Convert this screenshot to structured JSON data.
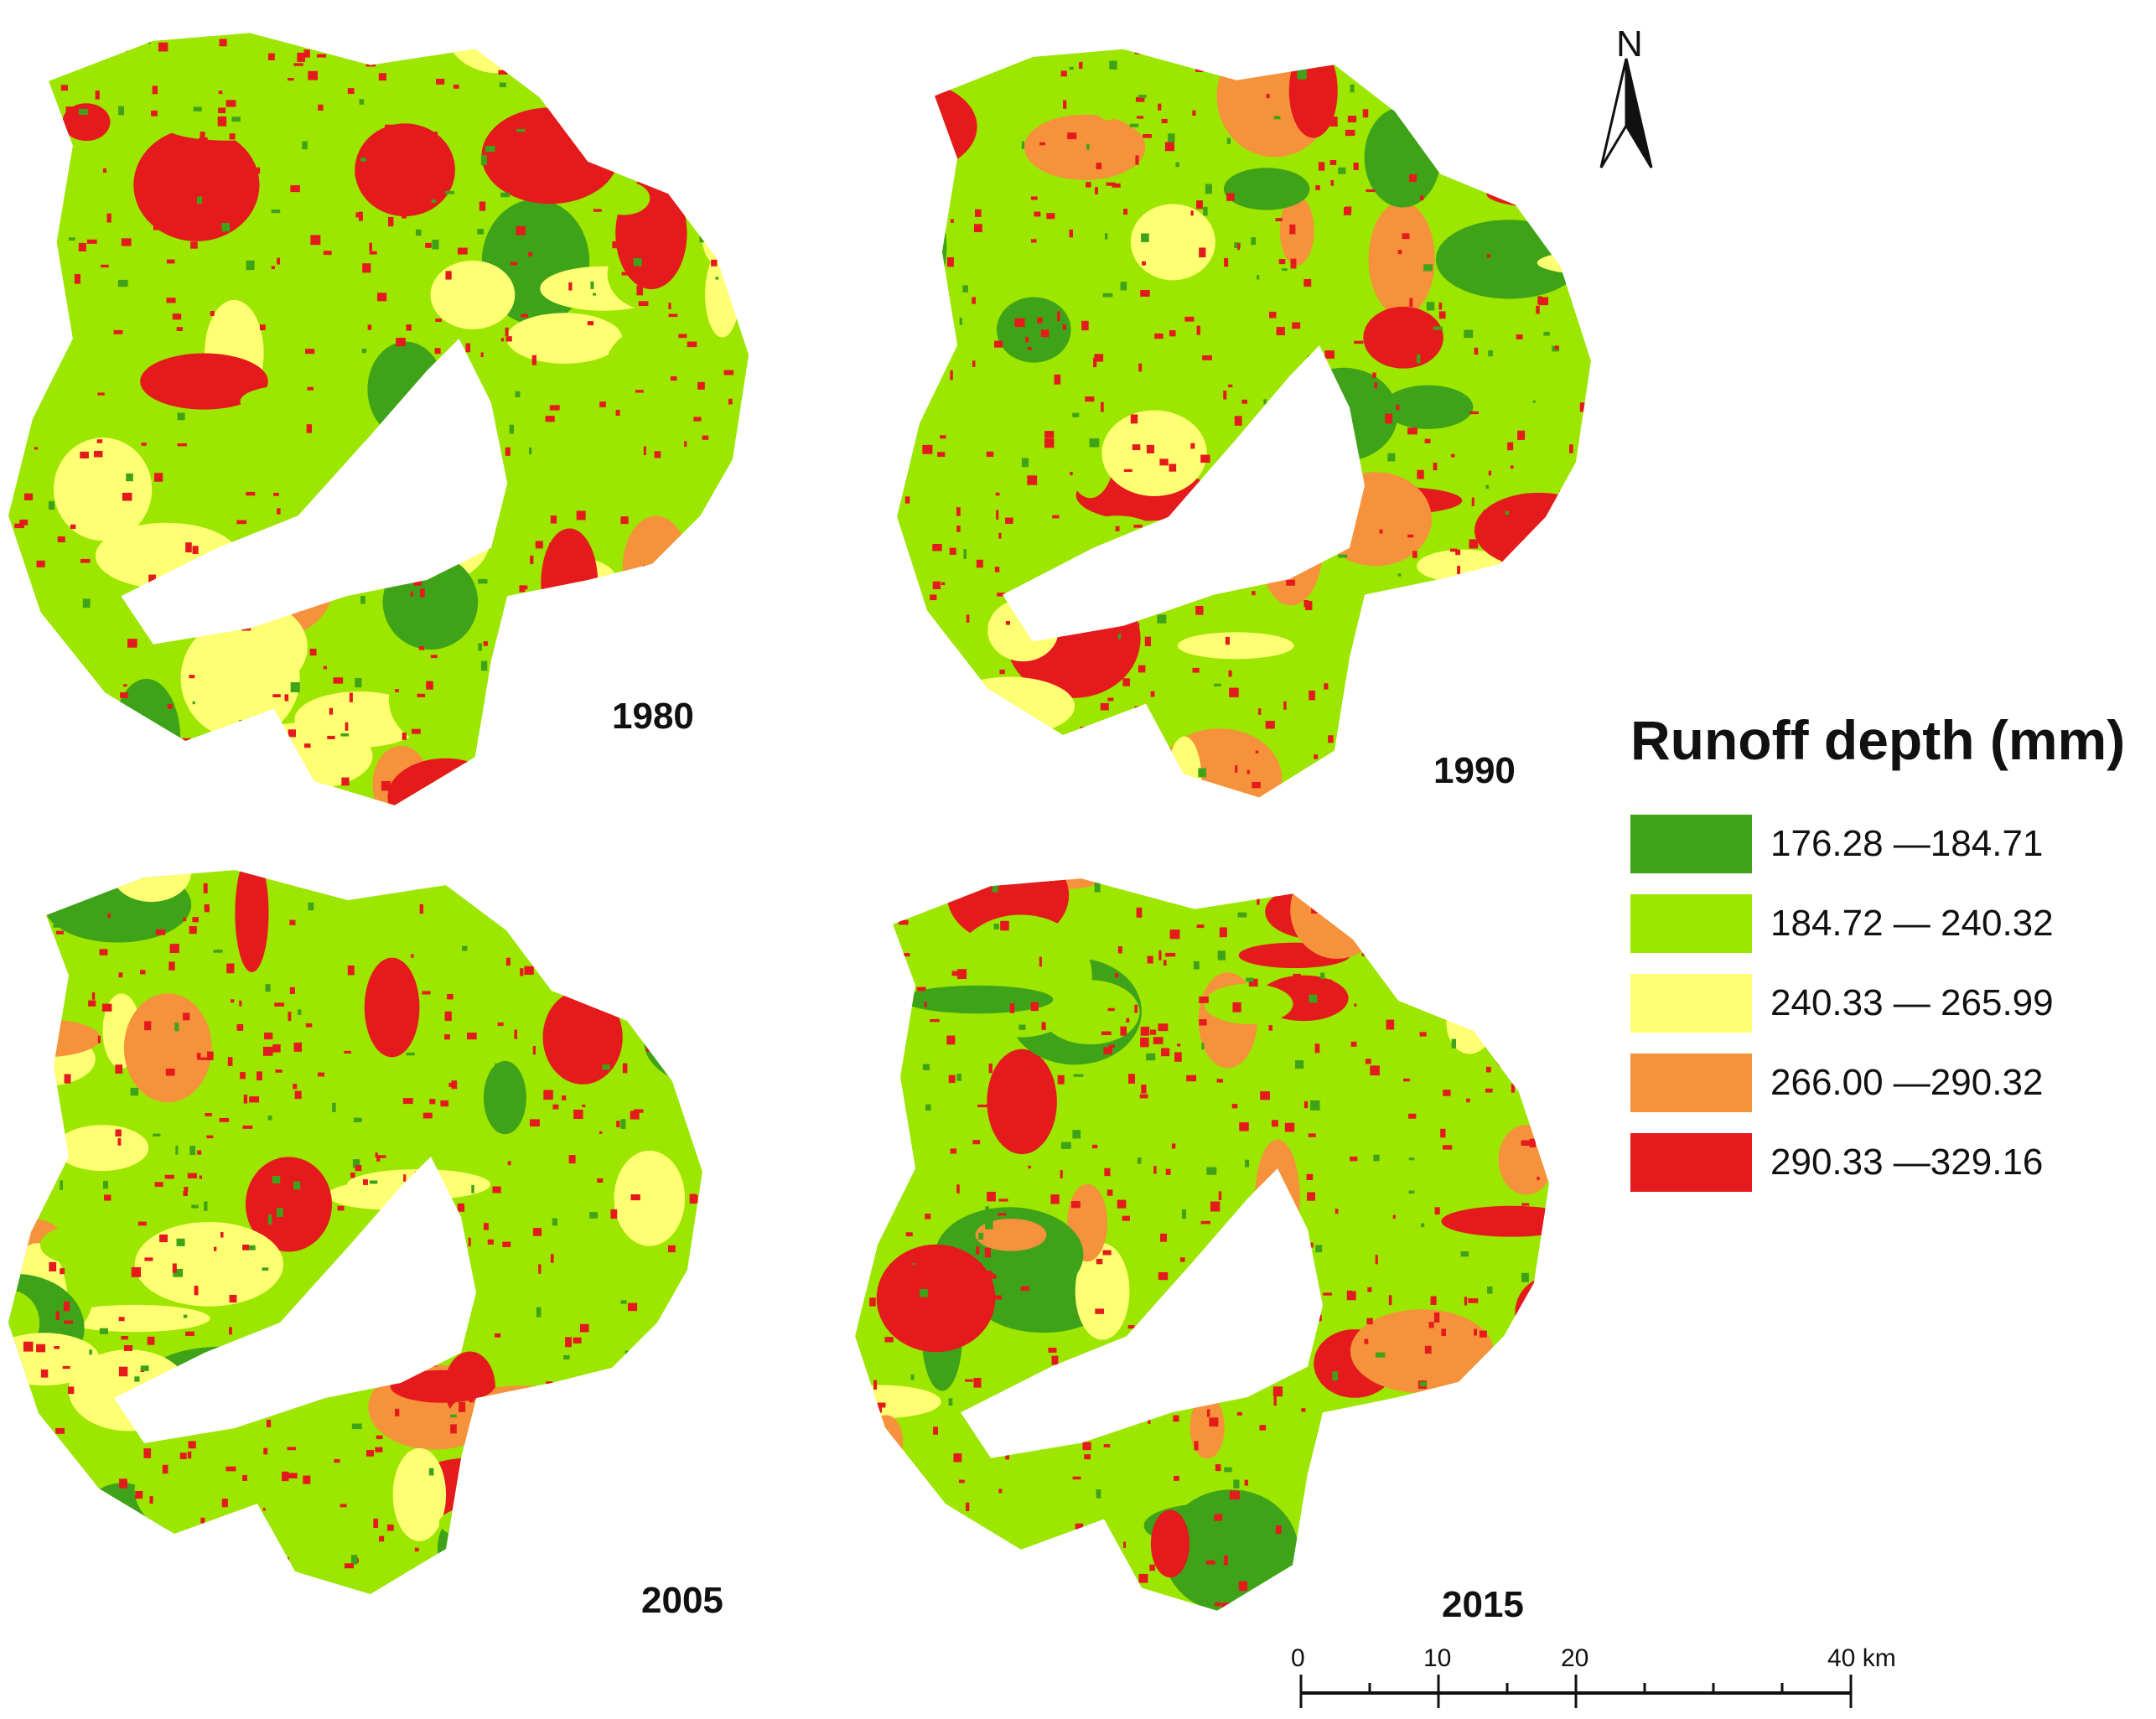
{
  "maps": [
    {
      "year": "1980",
      "palette": [
        "#9ce600",
        "#9ce600",
        "#9ce600",
        "#ffff73",
        "#ffff73",
        "#3fa31a",
        "#e41a1c",
        "#f6913c"
      ]
    },
    {
      "year": "1990",
      "palette": [
        "#9ce600",
        "#9ce600",
        "#9ce600",
        "#ffff73",
        "#3fa31a",
        "#e41a1c",
        "#e41a1c",
        "#f6913c"
      ]
    },
    {
      "year": "2005",
      "palette": [
        "#9ce600",
        "#9ce600",
        "#ffff73",
        "#ffff73",
        "#e41a1c",
        "#e41a1c",
        "#f6913c",
        "#3fa31a"
      ]
    },
    {
      "year": "2015",
      "palette": [
        "#9ce600",
        "#9ce600",
        "#ffff73",
        "#e41a1c",
        "#e41a1c",
        "#e41a1c",
        "#f6913c",
        "#3fa31a"
      ]
    }
  ],
  "legend": {
    "title": "Runoff depth (mm)",
    "items": [
      {
        "label": "176.28 —184.71",
        "color": "#3fa31a"
      },
      {
        "label": "184.72 — 240.32",
        "color": "#9ce600"
      },
      {
        "label": "240.33 — 265.99",
        "color": "#ffff73"
      },
      {
        "label": "266.00 —290.32",
        "color": "#f6913c"
      },
      {
        "label": "290.33 —329.16",
        "color": "#e41a1c"
      }
    ]
  },
  "north_arrow": {
    "label": "N",
    "icon": "north-arrow-icon"
  },
  "scale_bar": {
    "ticks": [
      "0",
      "10",
      "20",
      "40 km"
    ]
  }
}
